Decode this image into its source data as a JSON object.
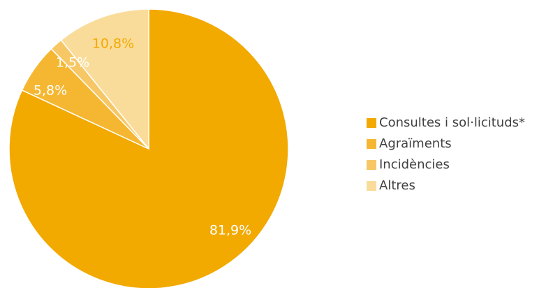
{
  "chart_data": {
    "type": "pie",
    "categories": [
      "Consultes i sol·licituds*",
      "Agraïments",
      "Incidències",
      "Altres"
    ],
    "values": [
      81.9,
      5.8,
      1.5,
      10.8
    ],
    "value_labels": [
      "81,9%",
      "5,8%",
      "1,5%",
      "10,8%"
    ],
    "colors": [
      "#f2a900",
      "#f5b731",
      "#f7c765",
      "#fadc9a"
    ],
    "label_colors": [
      "#ffffff",
      "#ffffff",
      "#ffffff",
      "#f2a900"
    ],
    "start": "12 o'clock",
    "direction": "clockwise",
    "legend_position": "right"
  }
}
